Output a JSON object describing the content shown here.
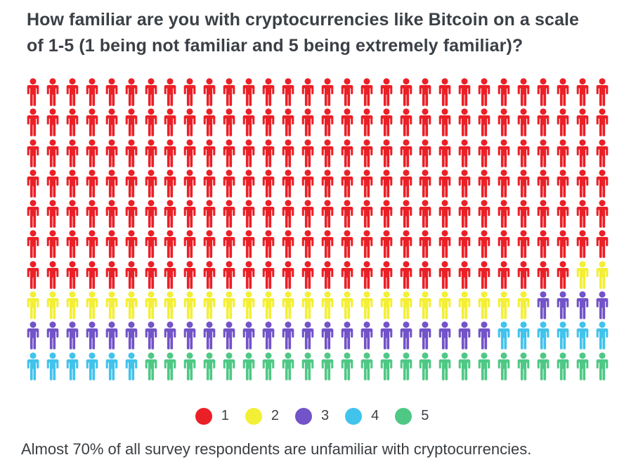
{
  "title": "How familiar are you with cryptocurrencies like Bitcoin on a scale of 1-5 (1 being not familiar and 5 being extremely familiar)?",
  "caption": "Almost 70% of all survey respondents are unfamiliar with cryptocurrencies.",
  "chart_data": {
    "type": "pictogram",
    "title": "How familiar are you with cryptocurrencies like Bitcoin on a scale of 1-5 (1 being not familiar and 5 being extremely familiar)?",
    "unit": "survey respondent",
    "unit_icon": "person-icon",
    "total_units": 300,
    "grid": {
      "rows": 10,
      "columns": 30,
      "fill_order": "row-major-left-to-right"
    },
    "categories": [
      "1",
      "2",
      "3",
      "4",
      "5"
    ],
    "series": [
      {
        "label": "1",
        "units": 208,
        "percent": 69.3,
        "color": "#eb2027"
      },
      {
        "label": "2",
        "units": 28,
        "percent": 9.3,
        "color": "#f3ef36"
      },
      {
        "label": "3",
        "units": 28,
        "percent": 9.3,
        "color": "#7253c8"
      },
      {
        "label": "4",
        "units": 12,
        "percent": 4.0,
        "color": "#41c3ec"
      },
      {
        "label": "5",
        "units": 24,
        "percent": 8.0,
        "color": "#4fc885"
      }
    ],
    "legend_position": "bottom-center",
    "annotation": "Almost 70% of all survey respondents are unfamiliar with cryptocurrencies."
  }
}
